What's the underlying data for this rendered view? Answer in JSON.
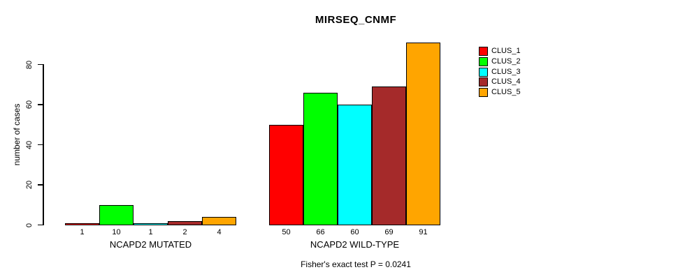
{
  "chart_data": {
    "type": "bar",
    "title": "MIRSEQ_CNMF",
    "ylabel": "number of cases",
    "xlabel": "",
    "annotation": "Fisher's exact test P = 0.0241",
    "y_ticks": [
      0,
      20,
      40,
      60,
      80
    ],
    "ylim": [
      0,
      91
    ],
    "grid": false,
    "legend_position": "right",
    "categories": [
      "NCAPD2 MUTATED",
      "NCAPD2 WILD-TYPE"
    ],
    "series": [
      {
        "name": "CLUS_1",
        "color": "#FF0000",
        "values": [
          1,
          50
        ]
      },
      {
        "name": "CLUS_2",
        "color": "#00FF00",
        "values": [
          10,
          66
        ]
      },
      {
        "name": "CLUS_3",
        "color": "#00FFFF",
        "values": [
          1,
          60
        ]
      },
      {
        "name": "CLUS_4",
        "color": "#A52A2A",
        "values": [
          2,
          69
        ]
      },
      {
        "name": "CLUS_5",
        "color": "#FFA500",
        "values": [
          4,
          91
        ]
      }
    ],
    "bar_border_color": "#000000",
    "bar_value_labels": [
      [
        "1",
        "10",
        "1",
        "2",
        "4"
      ],
      [
        "50",
        "66",
        "60",
        "69",
        "91"
      ]
    ]
  }
}
